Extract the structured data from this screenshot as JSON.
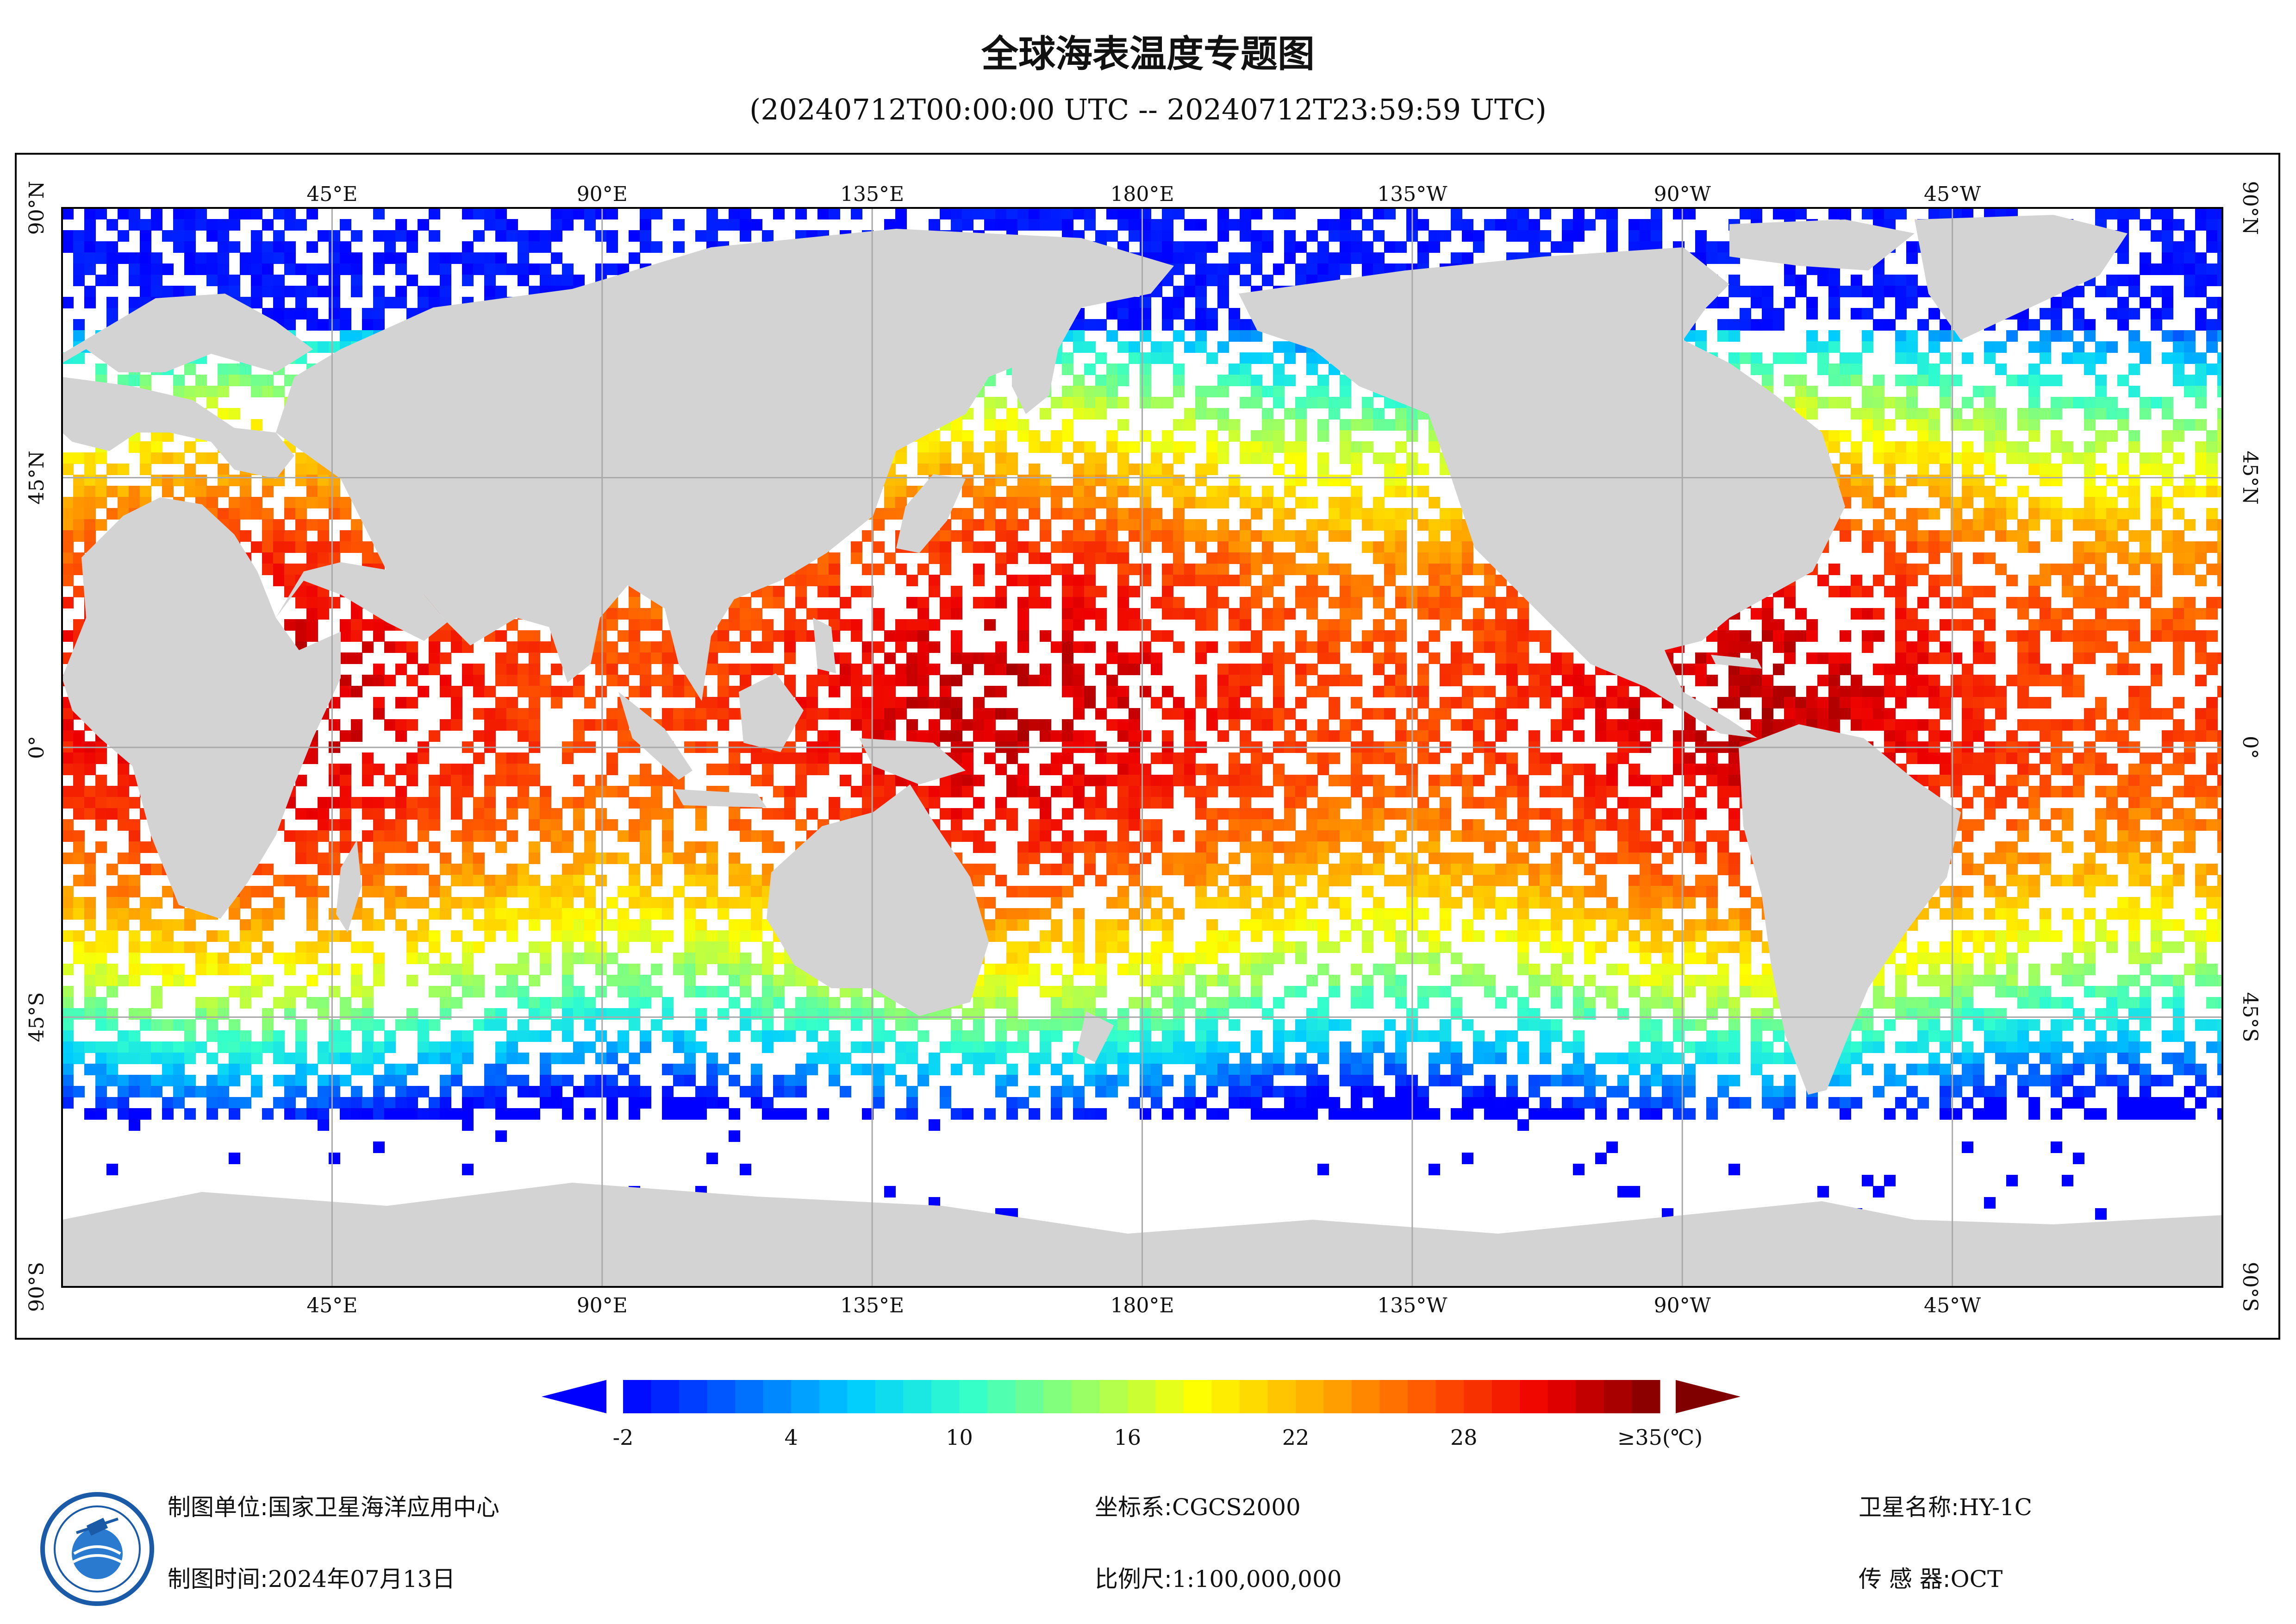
{
  "header": {
    "title": "全球海表温度专题图",
    "subtitle": "(20240712T00:00:00 UTC -- 20240712T23:59:59 UTC)"
  },
  "map": {
    "projection": "equirectangular",
    "lon_range": [
      0,
      360
    ],
    "lat_range": [
      -90,
      90
    ],
    "grid": true,
    "top_lon_labels": [
      "45°E",
      "90°E",
      "135°E",
      "180°E",
      "135°W",
      "90°W",
      "45°W"
    ],
    "bottom_lon_labels": [
      "45°E",
      "90°E",
      "135°E",
      "180°E",
      "135°W",
      "90°W",
      "45°W"
    ],
    "left_lat_labels": [
      "90°N",
      "45°N",
      "0°",
      "45°S",
      "90°S"
    ],
    "right_lat_labels": [
      "90°N",
      "45°N",
      "0°",
      "45°S",
      "90°S"
    ],
    "land_color": "#d3d3d3",
    "nodata_color": "#ffffff",
    "grid_color": "#aaaaaa"
  },
  "colorbar": {
    "min": -2,
    "max": 35,
    "tick_labels": [
      "-2",
      "4",
      "10",
      "16",
      "22",
      "28",
      "≥35(℃)"
    ],
    "under_color": "#0000ff",
    "over_color": "#800000",
    "stops": [
      "#0000ff",
      "#0066ff",
      "#00ccff",
      "#33ffcc",
      "#99ff66",
      "#ffff00",
      "#ffb000",
      "#ff5500",
      "#ee0000",
      "#800000"
    ]
  },
  "footer": {
    "producer_label": "制图单位:",
    "producer_value": "国家卫星海洋应用中心",
    "date_label": "制图时间:",
    "date_value": "2024年07月13日",
    "crs_label": "坐标系:",
    "crs_value": "CGCS2000",
    "scale_label": "比例尺:",
    "scale_value": "1:100,000,000",
    "satellite_label": "卫星名称:",
    "satellite_value": "HY-1C",
    "sensor_label": "传 感 器:",
    "sensor_value": "OCT"
  },
  "logo": {
    "icon": "nsoas-logo"
  }
}
